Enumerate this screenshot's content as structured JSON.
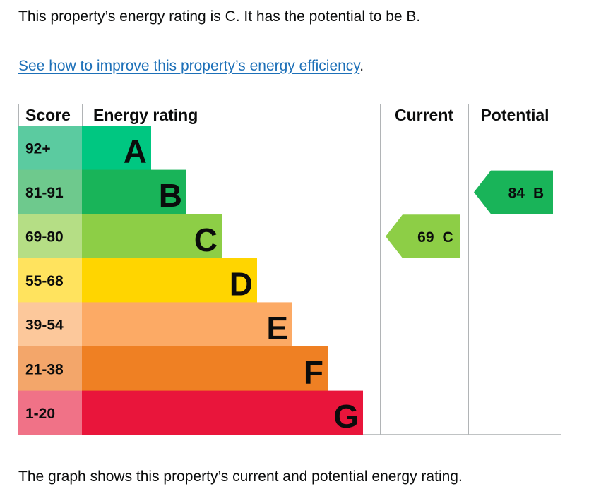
{
  "intro_text": "This property’s energy rating is C. It has the potential to be B.",
  "improve_link": "See how to improve this property’s energy efficiency",
  "improve_suffix": ".",
  "caption": "The graph shows this property’s current and potential energy rating.",
  "chart_data": {
    "type": "bar",
    "headers": {
      "score": "Score",
      "rating": "Energy rating",
      "current": "Current",
      "potential": "Potential"
    },
    "bands": [
      {
        "score": "92+",
        "letter": "A",
        "relative_length": 1,
        "color": "#00c781",
        "score_color": "#5bcba0"
      },
      {
        "score": "81-91",
        "letter": "B",
        "relative_length": 2,
        "color": "#19b459",
        "score_color": "#6ec98d"
      },
      {
        "score": "69-80",
        "letter": "C",
        "relative_length": 3,
        "color": "#8dce46",
        "score_color": "#b5de85"
      },
      {
        "score": "55-68",
        "letter": "D",
        "relative_length": 4,
        "color": "#ffd500",
        "score_color": "#ffe35e"
      },
      {
        "score": "39-54",
        "letter": "E",
        "relative_length": 5,
        "color": "#fcaa65",
        "score_color": "#fcc89b"
      },
      {
        "score": "21-38",
        "letter": "F",
        "relative_length": 6,
        "color": "#ef8023",
        "score_color": "#f3a66a"
      },
      {
        "score": "1-20",
        "letter": "G",
        "relative_length": 7,
        "color": "#e9153b",
        "score_color": "#f07287"
      }
    ],
    "current": {
      "score": "69",
      "letter": "C",
      "band": "C",
      "color": "#8dce46"
    },
    "potential": {
      "score": "84",
      "letter": "B",
      "band": "B",
      "color": "#19b459"
    }
  }
}
